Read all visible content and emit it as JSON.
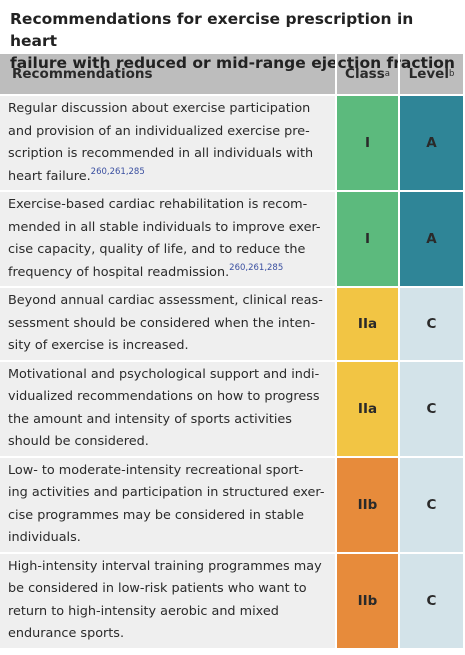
{
  "title": {
    "lines": [
      "Recommendations for exercise prescription in heart",
      "failure with reduced or mid-range ejection fraction"
    ]
  },
  "header": {
    "recommendations": "Recommendations",
    "class": "Class",
    "class_note": "a",
    "level": "Level",
    "level_note": "b"
  },
  "rows": [
    {
      "lines": [
        "Regular discussion about exercise participation",
        "and provision of an individualized exercise pre-",
        "scription is recommended in all individuals with",
        "heart failure."
      ],
      "refs": "260,261,285",
      "class": "I",
      "level": "A",
      "class_color": "#5cba7d",
      "level_color": "#2f8597"
    },
    {
      "lines": [
        "Exercise-based cardiac rehabilitation is recom-",
        "mended in all stable individuals to improve exer-",
        "cise capacity, quality of life, and to reduce the",
        "frequency of hospital readmission."
      ],
      "refs": "260,261,285",
      "class": "I",
      "level": "A",
      "class_color": "#5cba7d",
      "level_color": "#2f8597"
    },
    {
      "lines": [
        "Beyond annual cardiac assessment, clinical reas-",
        "sessment should be considered when the inten-",
        "sity of exercise is increased."
      ],
      "class": "IIa",
      "level": "C",
      "class_color": "#f2c544",
      "level_color": "#d3e3e9"
    },
    {
      "lines": [
        "Motivational and psychological support and indi-",
        "vidualized recommendations on how to progress",
        "the amount and intensity of sports activities",
        "should be considered."
      ],
      "class": "IIa",
      "level": "C",
      "class_color": "#f2c544",
      "level_color": "#d3e3e9"
    },
    {
      "lines": [
        "Low- to moderate-intensity recreational sport-",
        "ing activities and participation in structured exer-",
        "cise programmes may be considered in stable",
        "individuals."
      ],
      "class": "IIb",
      "level": "C",
      "class_color": "#e78b3b",
      "level_color": "#d3e3e9"
    },
    {
      "lines": [
        "High-intensity interval training programmes may",
        "be considered in low-risk patients who want to",
        "return to high-intensity aerobic and mixed",
        "endurance sports."
      ],
      "class": "IIb",
      "level": "C",
      "class_color": "#e78b3b",
      "level_color": "#d3e3e9"
    }
  ]
}
